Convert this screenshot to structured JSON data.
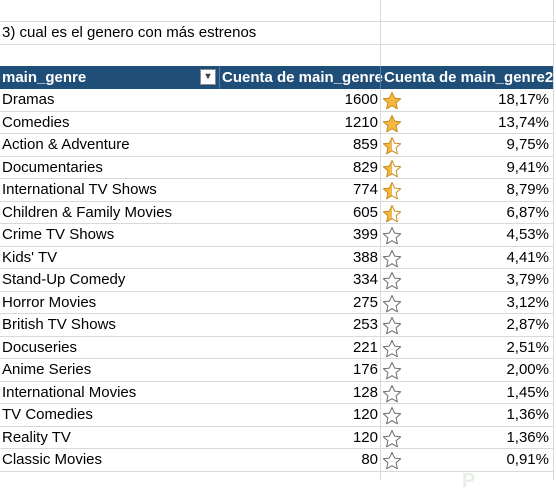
{
  "question": "3) cual es el genero con más estrenos",
  "headers": {
    "genre": "main_genre",
    "count": "Cuenta de main_genre",
    "count2": "Cuenta de main_genre2",
    "filter_icon": "▾"
  },
  "colors": {
    "header_bg": "#1f4e78",
    "star_fill": "#f4b942",
    "star_outline": "#6b6b6b"
  },
  "rows": [
    {
      "genre": "Dramas",
      "count": "1600",
      "pct": "18,17%",
      "star": "filled"
    },
    {
      "genre": "Comedies",
      "count": "1210",
      "pct": "13,74%",
      "star": "filled"
    },
    {
      "genre": "Action & Adventure",
      "count": "859",
      "pct": "9,75%",
      "star": "partial"
    },
    {
      "genre": "Documentaries",
      "count": "829",
      "pct": "9,41%",
      "star": "partial"
    },
    {
      "genre": "International TV Shows",
      "count": "774",
      "pct": "8,79%",
      "star": "partial"
    },
    {
      "genre": "Children & Family Movies",
      "count": "605",
      "pct": "6,87%",
      "star": "partial"
    },
    {
      "genre": "Crime TV Shows",
      "count": "399",
      "pct": "4,53%",
      "star": "empty"
    },
    {
      "genre": "Kids' TV",
      "count": "388",
      "pct": "4,41%",
      "star": "empty"
    },
    {
      "genre": "Stand-Up Comedy",
      "count": "334",
      "pct": "3,79%",
      "star": "empty"
    },
    {
      "genre": "Horror Movies",
      "count": "275",
      "pct": "3,12%",
      "star": "empty"
    },
    {
      "genre": "British TV Shows",
      "count": "253",
      "pct": "2,87%",
      "star": "empty"
    },
    {
      "genre": "Docuseries",
      "count": "221",
      "pct": "2,51%",
      "star": "empty"
    },
    {
      "genre": "Anime Series",
      "count": "176",
      "pct": "2,00%",
      "star": "empty"
    },
    {
      "genre": "International Movies",
      "count": "128",
      "pct": "1,45%",
      "star": "empty"
    },
    {
      "genre": "TV Comedies",
      "count": "120",
      "pct": "1,36%",
      "star": "empty"
    },
    {
      "genre": "Reality TV",
      "count": "120",
      "pct": "1,36%",
      "star": "empty"
    },
    {
      "genre": "Classic Movies",
      "count": "80",
      "pct": "0,91%",
      "star": "empty"
    }
  ]
}
